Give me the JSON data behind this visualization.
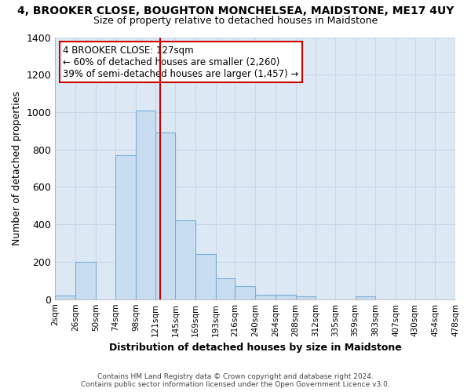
{
  "title_line1": "4, BROOKER CLOSE, BOUGHTON MONCHELSEA, MAIDSTONE, ME17 4UY",
  "title_line2": "Size of property relative to detached houses in Maidstone",
  "xlabel": "Distribution of detached houses by size in Maidstone",
  "ylabel": "Number of detached properties",
  "bar_left_edges": [
    2,
    26,
    50,
    74,
    98,
    121,
    145,
    169,
    193,
    216,
    240,
    264,
    288,
    312,
    335,
    359,
    383,
    407,
    430,
    454
  ],
  "bar_widths": [
    24,
    24,
    24,
    24,
    23,
    24,
    24,
    24,
    23,
    24,
    24,
    24,
    24,
    23,
    24,
    24,
    24,
    23,
    24,
    24
  ],
  "bar_heights": [
    20,
    200,
    0,
    770,
    1010,
    890,
    420,
    240,
    110,
    70,
    25,
    25,
    15,
    0,
    0,
    15,
    0,
    0,
    0,
    0
  ],
  "bar_color": "#c8ddf0",
  "bar_edge_color": "#7bafd4",
  "property_line_x": 127,
  "property_line_color": "#cc0000",
  "annotation_title": "4 BROOKER CLOSE: 127sqm",
  "annotation_line1": "← 60% of detached houses are smaller (2,260)",
  "annotation_line2": "39% of semi-detached houses are larger (1,457) →",
  "annotation_box_color": "#ffffff",
  "annotation_box_edge_color": "#cc0000",
  "xlim": [
    2,
    478
  ],
  "ylim": [
    0,
    1400
  ],
  "yticks": [
    0,
    200,
    400,
    600,
    800,
    1000,
    1200,
    1400
  ],
  "xtick_labels": [
    "2sqm",
    "26sqm",
    "50sqm",
    "74sqm",
    "98sqm",
    "121sqm",
    "145sqm",
    "169sqm",
    "193sqm",
    "216sqm",
    "240sqm",
    "264sqm",
    "288sqm",
    "312sqm",
    "335sqm",
    "359sqm",
    "383sqm",
    "407sqm",
    "430sqm",
    "454sqm",
    "478sqm"
  ],
  "xtick_positions": [
    2,
    26,
    50,
    74,
    98,
    121,
    145,
    169,
    193,
    216,
    240,
    264,
    288,
    312,
    335,
    359,
    383,
    407,
    430,
    454,
    478
  ],
  "grid_color": "#c8d8e8",
  "plot_bg_color": "#dce8f4",
  "background_color": "#ffffff",
  "footer_line1": "Contains HM Land Registry data © Crown copyright and database right 2024.",
  "footer_line2": "Contains public sector information licensed under the Open Government Licence v3.0."
}
